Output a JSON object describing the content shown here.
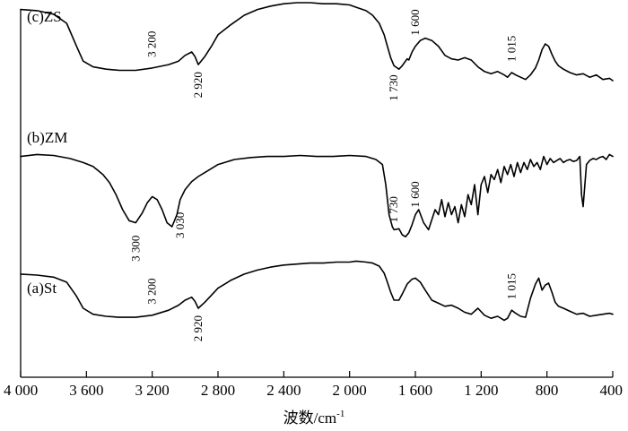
{
  "chart_data": {
    "type": "line",
    "xlabel": "波数/cm",
    "xlabel_sup": "-1",
    "xlim": [
      4000,
      400
    ],
    "x_reversed": true,
    "x_ticks": [
      4000,
      3600,
      3200,
      2800,
      2400,
      2000,
      1600,
      1200,
      800,
      400
    ],
    "x_tick_labels": [
      "4 000",
      "3 600",
      "3 200",
      "2 800",
      "2 400",
      "2 000",
      "1 600",
      "1 200",
      "800",
      "400"
    ],
    "y_axis_ticks": false,
    "grid": false,
    "line_color": "#000000",
    "series": [
      {
        "name": "(c)ZS",
        "x": [
          4000,
          3900,
          3800,
          3720,
          3660,
          3620,
          3560,
          3480,
          3400,
          3300,
          3200,
          3100,
          3040,
          3000,
          2960,
          2940,
          2920,
          2880,
          2840,
          2800,
          2720,
          2640,
          2560,
          2480,
          2400,
          2320,
          2240,
          2160,
          2080,
          2000,
          1960,
          1900,
          1860,
          1820,
          1790,
          1770,
          1750,
          1730,
          1700,
          1680,
          1650,
          1640,
          1620,
          1600,
          1570,
          1540,
          1500,
          1460,
          1420,
          1380,
          1340,
          1300,
          1260,
          1220,
          1180,
          1140,
          1100,
          1060,
          1040,
          1015,
          990,
          960,
          930,
          900,
          870,
          850,
          830,
          810,
          790,
          770,
          750,
          730,
          700,
          660,
          620,
          580,
          540,
          500,
          460,
          420,
          400
        ],
        "y": [
          0.87,
          0.86,
          0.83,
          0.75,
          0.55,
          0.42,
          0.37,
          0.35,
          0.34,
          0.34,
          0.36,
          0.39,
          0.42,
          0.47,
          0.5,
          0.46,
          0.39,
          0.46,
          0.55,
          0.65,
          0.74,
          0.82,
          0.87,
          0.9,
          0.92,
          0.93,
          0.93,
          0.92,
          0.92,
          0.91,
          0.89,
          0.86,
          0.82,
          0.75,
          0.65,
          0.55,
          0.45,
          0.38,
          0.35,
          0.38,
          0.44,
          0.43,
          0.5,
          0.55,
          0.6,
          0.62,
          0.6,
          0.55,
          0.47,
          0.44,
          0.43,
          0.45,
          0.43,
          0.37,
          0.33,
          0.31,
          0.33,
          0.3,
          0.28,
          0.32,
          0.3,
          0.28,
          0.26,
          0.3,
          0.36,
          0.43,
          0.52,
          0.57,
          0.55,
          0.48,
          0.42,
          0.38,
          0.35,
          0.32,
          0.3,
          0.31,
          0.28,
          0.3,
          0.26,
          0.27,
          0.25
        ],
        "annotations": [
          {
            "label": "3 200",
            "x": 3200
          },
          {
            "label": "2 920",
            "x": 2920
          },
          {
            "label": "1 730",
            "x": 1730
          },
          {
            "label": "1 600",
            "x": 1600
          },
          {
            "label": "1 015",
            "x": 1015
          }
        ]
      },
      {
        "name": "(b)ZM",
        "x": [
          4000,
          3900,
          3800,
          3700,
          3620,
          3560,
          3500,
          3460,
          3420,
          3380,
          3340,
          3300,
          3260,
          3230,
          3200,
          3170,
          3140,
          3110,
          3080,
          3050,
          3030,
          3000,
          2960,
          2920,
          2880,
          2840,
          2800,
          2700,
          2600,
          2500,
          2400,
          2300,
          2200,
          2100,
          2000,
          1900,
          1840,
          1800,
          1780,
          1760,
          1740,
          1730,
          1700,
          1680,
          1660,
          1640,
          1620,
          1600,
          1580,
          1550,
          1520,
          1500,
          1480,
          1460,
          1440,
          1420,
          1400,
          1380,
          1360,
          1340,
          1320,
          1300,
          1280,
          1260,
          1240,
          1220,
          1200,
          1180,
          1160,
          1140,
          1120,
          1100,
          1080,
          1060,
          1040,
          1020,
          1000,
          980,
          960,
          940,
          920,
          900,
          880,
          860,
          840,
          820,
          800,
          780,
          760,
          740,
          720,
          700,
          680,
          660,
          640,
          620,
          600,
          590,
          580,
          560,
          540,
          520,
          500,
          480,
          460,
          440,
          420,
          400
        ],
        "y": [
          0.78,
          0.8,
          0.79,
          0.76,
          0.72,
          0.68,
          0.6,
          0.52,
          0.4,
          0.25,
          0.14,
          0.12,
          0.22,
          0.32,
          0.38,
          0.35,
          0.25,
          0.12,
          0.08,
          0.2,
          0.35,
          0.45,
          0.53,
          0.58,
          0.62,
          0.66,
          0.7,
          0.75,
          0.77,
          0.78,
          0.78,
          0.79,
          0.78,
          0.78,
          0.79,
          0.78,
          0.75,
          0.7,
          0.5,
          0.2,
          0.08,
          0.05,
          0.06,
          0.0,
          -0.02,
          0.02,
          0.1,
          0.2,
          0.25,
          0.12,
          0.05,
          0.15,
          0.25,
          0.2,
          0.35,
          0.18,
          0.32,
          0.2,
          0.28,
          0.12,
          0.3,
          0.18,
          0.4,
          0.3,
          0.5,
          0.2,
          0.5,
          0.58,
          0.42,
          0.6,
          0.55,
          0.65,
          0.52,
          0.68,
          0.6,
          0.7,
          0.58,
          0.72,
          0.62,
          0.72,
          0.65,
          0.75,
          0.68,
          0.72,
          0.65,
          0.78,
          0.7,
          0.76,
          0.72,
          0.74,
          0.76,
          0.72,
          0.74,
          0.75,
          0.73,
          0.74,
          0.78,
          0.4,
          0.28,
          0.7,
          0.74,
          0.76,
          0.75,
          0.77,
          0.78,
          0.75,
          0.8,
          0.78
        ],
        "annotations": [
          {
            "label": "3 300",
            "x": 3300
          },
          {
            "label": "3 030",
            "x": 3030
          },
          {
            "label": "1 730",
            "x": 1730
          },
          {
            "label": "1 600",
            "x": 1600
          }
        ]
      },
      {
        "name": "(a)St",
        "x": [
          4000,
          3900,
          3800,
          3720,
          3660,
          3620,
          3560,
          3480,
          3400,
          3300,
          3200,
          3100,
          3040,
          3000,
          2960,
          2940,
          2920,
          2880,
          2840,
          2800,
          2720,
          2640,
          2560,
          2480,
          2400,
          2320,
          2240,
          2160,
          2080,
          2000,
          1960,
          1900,
          1860,
          1820,
          1790,
          1770,
          1750,
          1730,
          1700,
          1680,
          1650,
          1620,
          1600,
          1570,
          1540,
          1500,
          1460,
          1420,
          1380,
          1340,
          1300,
          1260,
          1220,
          1180,
          1140,
          1100,
          1060,
          1040,
          1015,
          990,
          960,
          930,
          900,
          870,
          850,
          830,
          810,
          790,
          770,
          750,
          730,
          700,
          660,
          620,
          580,
          540,
          500,
          460,
          420,
          400
        ],
        "y": [
          0.84,
          0.83,
          0.81,
          0.76,
          0.62,
          0.5,
          0.44,
          0.42,
          0.41,
          0.41,
          0.43,
          0.48,
          0.53,
          0.58,
          0.61,
          0.57,
          0.5,
          0.56,
          0.63,
          0.7,
          0.78,
          0.84,
          0.88,
          0.91,
          0.93,
          0.94,
          0.95,
          0.95,
          0.96,
          0.96,
          0.97,
          0.96,
          0.95,
          0.92,
          0.85,
          0.76,
          0.66,
          0.58,
          0.58,
          0.64,
          0.74,
          0.79,
          0.8,
          0.76,
          0.68,
          0.58,
          0.55,
          0.52,
          0.53,
          0.5,
          0.46,
          0.44,
          0.5,
          0.43,
          0.4,
          0.42,
          0.38,
          0.4,
          0.48,
          0.45,
          0.42,
          0.41,
          0.6,
          0.74,
          0.8,
          0.68,
          0.73,
          0.75,
          0.66,
          0.56,
          0.52,
          0.5,
          0.47,
          0.44,
          0.45,
          0.42,
          0.43,
          0.44,
          0.45,
          0.44
        ],
        "annotations": [
          {
            "label": "3 200",
            "x": 3200
          },
          {
            "label": "2 920",
            "x": 2920
          },
          {
            "label": "1 015",
            "x": 1015
          }
        ]
      }
    ]
  }
}
